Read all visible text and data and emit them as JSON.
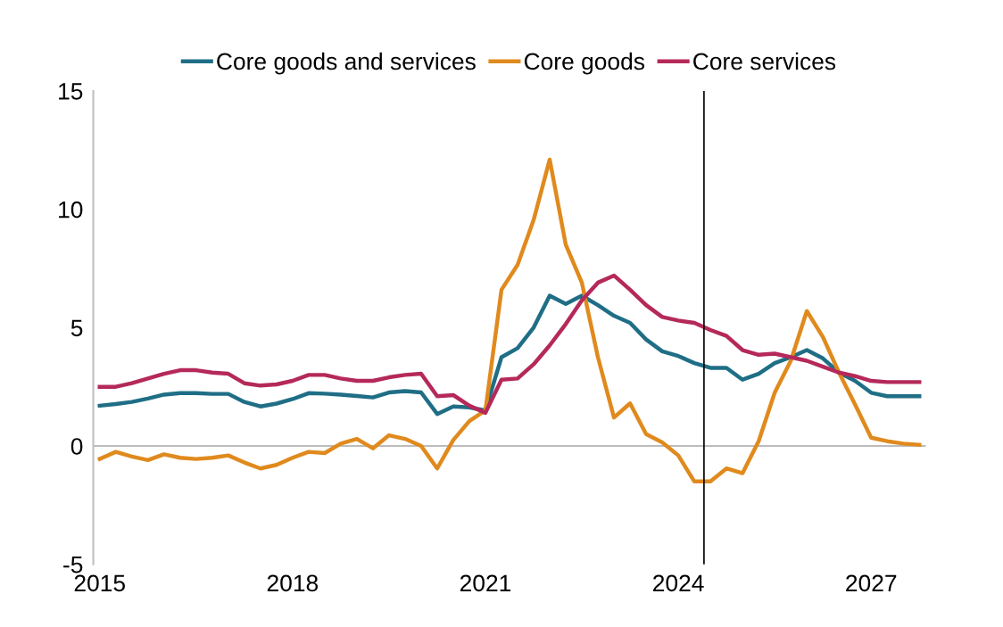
{
  "chart_data": {
    "type": "line",
    "x": [
      2015,
      2015.25,
      2015.5,
      2015.75,
      2016,
      2016.25,
      2016.5,
      2016.75,
      2017,
      2017.25,
      2017.5,
      2017.75,
      2018,
      2018.25,
      2018.5,
      2018.75,
      2019,
      2019.25,
      2019.5,
      2019.75,
      2020,
      2020.25,
      2020.5,
      2020.75,
      2021,
      2021.25,
      2021.5,
      2021.75,
      2022,
      2022.25,
      2022.5,
      2022.75,
      2023,
      2023.25,
      2023.5,
      2023.75,
      2024,
      2024.25,
      2024.5,
      2024.75,
      2025,
      2025.25,
      2025.5,
      2025.75,
      2026,
      2026.25,
      2026.5,
      2026.75,
      2027,
      2027.25,
      2027.5,
      2027.75
    ],
    "series": [
      {
        "name": "Core goods and services",
        "color": "#1f6e86",
        "values": [
          1.7,
          1.77,
          1.86,
          2.0,
          2.17,
          2.23,
          2.23,
          2.2,
          2.2,
          1.86,
          1.67,
          1.79,
          1.98,
          2.23,
          2.21,
          2.17,
          2.11,
          2.05,
          2.26,
          2.32,
          2.26,
          1.35,
          1.67,
          1.63,
          1.5,
          3.75,
          4.13,
          5.0,
          6.35,
          6.0,
          6.35,
          5.95,
          5.5,
          5.2,
          4.5,
          4.0,
          3.8,
          3.5,
          3.3,
          3.3,
          2.8,
          3.05,
          3.5,
          3.75,
          4.05,
          3.7,
          3.1,
          2.75,
          2.25,
          2.1,
          2.1,
          2.1
        ]
      },
      {
        "name": "Core goods",
        "color": "#e08a1e",
        "values": [
          -0.55,
          -0.25,
          -0.45,
          -0.6,
          -0.35,
          -0.5,
          -0.55,
          -0.5,
          -0.4,
          -0.7,
          -0.95,
          -0.8,
          -0.5,
          -0.25,
          -0.3,
          0.1,
          0.3,
          -0.1,
          0.45,
          0.3,
          0,
          -0.95,
          0.25,
          1.05,
          1.5,
          6.6,
          7.65,
          9.55,
          12.1,
          8.5,
          6.9,
          3.75,
          1.2,
          1.8,
          0.5,
          0.15,
          -0.4,
          -1.5,
          -1.5,
          -0.95,
          -1.15,
          0.2,
          2.25,
          3.6,
          5.7,
          4.6,
          3.1,
          1.75,
          0.35,
          0.2,
          0.1,
          0.05
        ]
      },
      {
        "name": "Core services",
        "color": "#b5295a",
        "values": [
          2.5,
          2.5,
          2.65,
          2.85,
          3.05,
          3.2,
          3.2,
          3.1,
          3.05,
          2.65,
          2.55,
          2.6,
          2.75,
          3.0,
          3.0,
          2.85,
          2.75,
          2.75,
          2.9,
          3.0,
          3.05,
          2.1,
          2.15,
          1.7,
          1.4,
          2.8,
          2.85,
          3.45,
          4.25,
          5.15,
          6.15,
          6.9,
          7.2,
          6.6,
          5.95,
          5.45,
          5.3,
          5.2,
          4.9,
          4.65,
          4.05,
          3.85,
          3.9,
          3.75,
          3.6,
          3.35,
          3.1,
          2.95,
          2.75,
          2.7,
          2.7,
          2.7
        ]
      }
    ],
    "xlim": [
      2014.9,
      2027.85
    ],
    "xticks": [
      2015,
      2018,
      2021,
      2024,
      2027
    ],
    "ylim": [
      -5,
      15
    ],
    "yticks": [
      -5,
      0,
      5,
      10,
      15
    ],
    "ref_lines": [
      {
        "axis": "y",
        "value": 0,
        "color": "#a6a6a6"
      },
      {
        "axis": "x",
        "value": 2024.4,
        "color": "#000000"
      }
    ],
    "grid": false,
    "legend": "top",
    "marker": "none",
    "line_style": "solid"
  }
}
